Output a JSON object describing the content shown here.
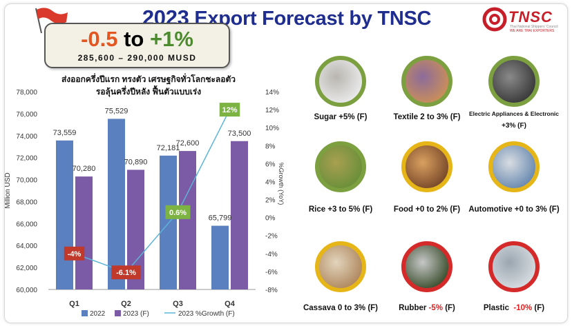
{
  "header": {
    "title_year": "2023",
    "title_rest": "Export Forecast by TNSC",
    "logo_text": "TNSC",
    "logo_sub_1": "Thai National Shippers' Council",
    "logo_sub_2": "WE ARE THAI EXPORTERS"
  },
  "forecast": {
    "low": "-0.5",
    "to": "to",
    "high": "+1%",
    "range": "285,600 – 290,000 MUSD"
  },
  "thai_text": {
    "line1": "ส่งออกครึ่งปีแรก ทรงตัว เศรษฐกิจทั่วโลกชะลอตัว",
    "line2": "รอลุ้นครึ่งปีหลัง ฟื้นตัวแบบเร่ง"
  },
  "chart_data": {
    "type": "bar",
    "categories": [
      "Q1",
      "Q2",
      "Q3",
      "Q4"
    ],
    "series": [
      {
        "name": "2022",
        "values": [
          73559,
          75529,
          72181,
          65799
        ],
        "labels": [
          "73,559",
          "75,529",
          "72,181",
          "65,799"
        ],
        "color": "#5b80bf"
      },
      {
        "name": "2023 (F)",
        "values": [
          70280,
          70890,
          72600,
          73500
        ],
        "labels": [
          "70,280",
          "70,890",
          "72,600",
          "73,500"
        ],
        "color": "#7b5aa6"
      },
      {
        "name": "2023 %Growth (F)",
        "type": "line",
        "axis": "right",
        "values": [
          -4,
          -6.1,
          0.6,
          12
        ],
        "labels": [
          "-4%",
          "-6.1%",
          "0.6%",
          "12%"
        ],
        "label_colors": [
          "#c0392b",
          "#c0392b",
          "#7cb342",
          "#7cb342"
        ],
        "color": "#5ab4d9"
      }
    ],
    "ylabel": "Million USD",
    "ylabel_right": "%Growth (YoY)",
    "ylim": [
      60000,
      78000
    ],
    "yticks": [
      "60,000",
      "62,000",
      "64,000",
      "66,000",
      "68,000",
      "70,000",
      "72,000",
      "74,000",
      "76,000",
      "78,000"
    ],
    "ylim_right": [
      -8,
      14
    ],
    "yticks_right": [
      "-8%",
      "-6%",
      "-4%",
      "-2%",
      "0%",
      "2%",
      "4%",
      "6%",
      "8%",
      "10%",
      "12%",
      "14%"
    ],
    "legend_position": "bottom",
    "grid": false
  },
  "products": [
    {
      "name": "Sugar",
      "label": "Sugar +5% (F)",
      "icon": "sugar-icon",
      "ring": "#7ca040"
    },
    {
      "name": "Textile",
      "label": "Textile 2 to 3% (F)",
      "icon": "textile-icon",
      "ring": "#7ca040"
    },
    {
      "name": "Electric",
      "label_1": "Electric Appliances & Electronic",
      "label_2": "+3% (F)",
      "icon": "appliance-icon",
      "ring": "#7ca040"
    },
    {
      "name": "Rice",
      "label": "Rice +3 to 5% (F)",
      "icon": "rice-icon",
      "ring": "#7ca040"
    },
    {
      "name": "Food",
      "label": "Food +0 to 2% (F)",
      "icon": "food-icon",
      "ring": "#e6b619"
    },
    {
      "name": "Automotive",
      "label": "Automotive +0 to 3% (F)",
      "icon": "car-icon",
      "ring": "#e6b619"
    },
    {
      "name": "Cassava",
      "label": "Cassava 0 to 3% (F)",
      "icon": "cassava-icon",
      "ring": "#e6b619"
    },
    {
      "name": "Rubber",
      "label_a": "Rubber ",
      "label_b": "-5%",
      "label_c": " (F)",
      "icon": "rubber-icon",
      "ring": "#d42a2a"
    },
    {
      "name": "Plastic",
      "label_a": "Plastic  ",
      "label_b": "-10%",
      "label_c": " (F)",
      "icon": "plastic-icon",
      "ring": "#d42a2a"
    }
  ]
}
